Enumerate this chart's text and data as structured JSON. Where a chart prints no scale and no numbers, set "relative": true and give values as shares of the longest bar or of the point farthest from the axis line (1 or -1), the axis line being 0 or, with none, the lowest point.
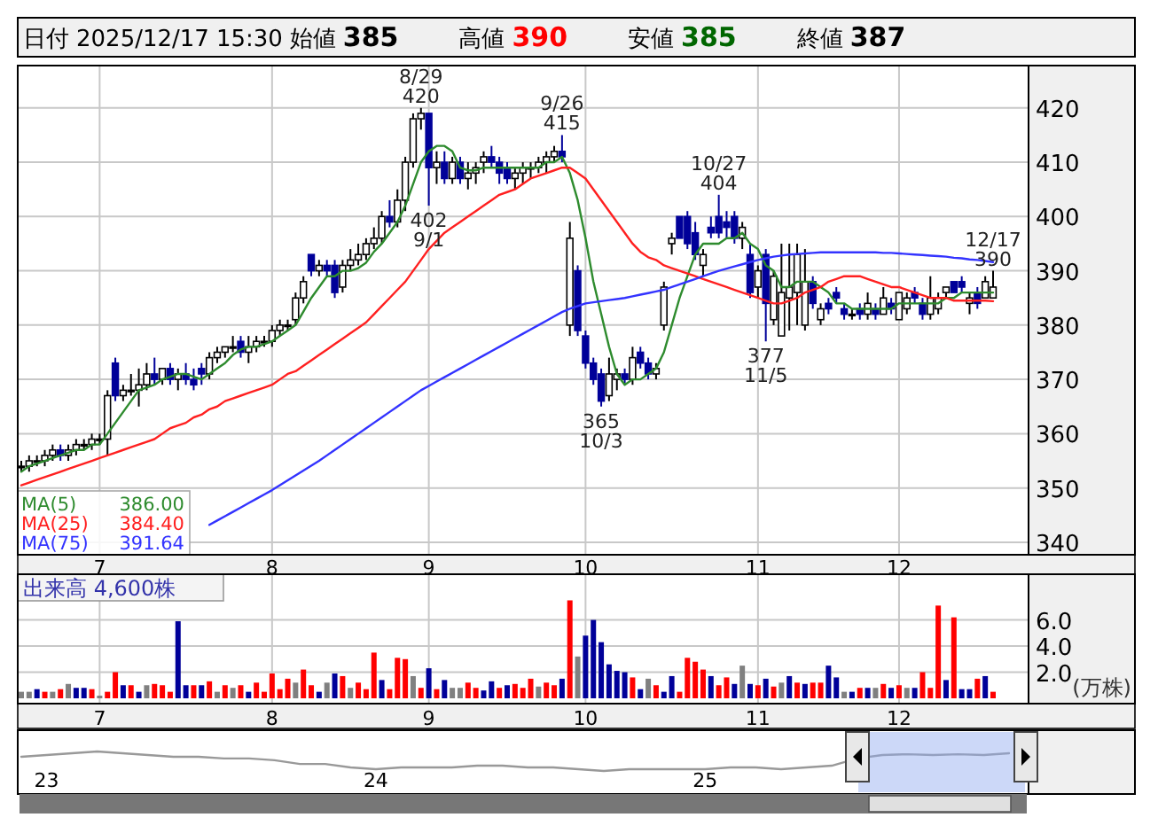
{
  "chart_data": [
    {
      "type": "candlestick",
      "title": "日付 2025/12/17 15:30 始値 385 高値 390 安値 385 終値 387",
      "categories": [
        null,
        null,
        null,
        null,
        null,
        null,
        null,
        null,
        null,
        null,
        "7",
        null,
        null,
        null,
        null,
        null,
        null,
        null,
        null,
        null,
        null,
        null,
        null,
        null,
        null,
        null,
        null,
        null,
        null,
        null,
        null,
        null,
        "8",
        null,
        null,
        null,
        null,
        null,
        null,
        null,
        null,
        null,
        null,
        null,
        null,
        null,
        null,
        null,
        null,
        null,
        null,
        null,
        "9",
        null,
        null,
        null,
        null,
        null,
        null,
        null,
        null,
        null,
        null,
        null,
        null,
        null,
        null,
        null,
        null,
        null,
        null,
        null,
        "10",
        null,
        null,
        null,
        null,
        null,
        null,
        null,
        null,
        null,
        null,
        null,
        null,
        null,
        null,
        null,
        null,
        null,
        null,
        null,
        null,
        null,
        "11",
        null,
        null,
        null,
        null,
        null,
        null,
        null,
        null,
        null,
        null,
        null,
        null,
        null,
        null,
        null,
        null,
        null,
        "12",
        null,
        null,
        null,
        null,
        null,
        null,
        null,
        null,
        null,
        null,
        null,
        null
      ],
      "ohlc": [
        [
          354,
          355,
          353,
          354
        ],
        [
          354,
          356,
          353,
          355
        ],
        [
          355,
          356,
          354,
          355
        ],
        [
          355,
          357,
          354,
          356
        ],
        [
          356,
          358,
          355,
          357
        ],
        [
          357,
          358,
          355,
          356
        ],
        [
          356,
          358,
          355,
          357
        ],
        [
          357,
          359,
          356,
          358
        ],
        [
          358,
          359,
          357,
          358
        ],
        [
          358,
          360,
          357,
          359
        ],
        [
          359,
          360,
          358,
          359
        ],
        [
          359,
          368,
          356,
          367
        ],
        [
          373,
          374,
          366,
          367
        ],
        [
          367,
          369,
          366,
          368
        ],
        [
          368,
          371,
          367,
          368
        ],
        [
          368,
          372,
          365,
          369
        ],
        [
          369,
          373,
          368,
          371
        ],
        [
          371,
          374,
          369,
          370
        ],
        [
          370,
          372,
          369,
          372
        ],
        [
          372,
          373,
          369,
          370
        ],
        [
          370,
          372,
          368,
          371
        ],
        [
          371,
          373,
          369,
          370
        ],
        [
          370,
          372,
          368,
          369
        ],
        [
          372,
          373,
          369,
          371
        ],
        [
          371,
          375,
          370,
          374
        ],
        [
          374,
          376,
          373,
          375
        ],
        [
          375,
          376,
          374,
          376
        ],
        [
          376,
          378,
          375,
          376
        ],
        [
          377,
          378,
          374,
          375
        ],
        [
          375,
          378,
          373,
          376
        ],
        [
          376,
          378,
          375,
          377
        ],
        [
          377,
          378,
          376,
          377
        ],
        [
          377,
          380,
          376,
          379
        ],
        [
          379,
          381,
          378,
          380
        ],
        [
          380,
          381,
          379,
          380
        ],
        [
          381,
          386,
          380,
          385
        ],
        [
          385,
          389,
          384,
          388
        ],
        [
          393,
          393,
          389,
          390
        ],
        [
          390,
          392,
          389,
          391
        ],
        [
          391,
          392,
          389,
          390
        ],
        [
          391,
          392,
          385,
          386
        ],
        [
          387,
          392,
          386,
          391
        ],
        [
          391,
          394,
          390,
          392
        ],
        [
          392,
          395,
          391,
          393
        ],
        [
          393,
          396,
          392,
          395
        ],
        [
          395,
          398,
          394,
          396
        ],
        [
          396,
          401,
          395,
          400
        ],
        [
          400,
          403,
          398,
          399
        ],
        [
          399,
          405,
          398,
          403
        ],
        [
          403,
          411,
          401,
          410
        ],
        [
          410,
          419,
          409,
          418
        ],
        [
          418,
          420,
          416,
          419
        ],
        [
          419,
          419,
          402,
          409
        ],
        [
          409,
          412,
          406,
          410
        ],
        [
          410,
          412,
          406,
          407
        ],
        [
          407,
          411,
          406,
          410
        ],
        [
          410,
          411,
          406,
          407
        ],
        [
          407,
          410,
          405,
          408
        ],
        [
          408,
          410,
          406,
          409
        ],
        [
          410,
          412,
          408,
          411
        ],
        [
          411,
          413,
          409,
          410
        ],
        [
          410,
          411,
          406,
          408
        ],
        [
          409,
          410,
          406,
          407
        ],
        [
          407,
          409,
          405,
          408
        ],
        [
          408,
          410,
          406,
          409
        ],
        [
          409,
          410,
          407,
          409
        ],
        [
          409,
          411,
          408,
          410
        ],
        [
          410,
          412,
          408,
          411
        ],
        [
          411,
          413,
          410,
          412
        ],
        [
          412,
          415,
          410,
          411
        ],
        [
          380,
          399,
          378,
          396
        ],
        [
          390,
          391,
          378,
          379
        ],
        [
          378,
          379,
          372,
          373
        ],
        [
          373,
          374,
          369,
          370
        ],
        [
          371,
          372,
          365,
          366
        ],
        [
          367,
          374,
          366,
          371
        ],
        [
          370,
          372,
          368,
          371
        ],
        [
          371,
          372,
          369,
          370
        ],
        [
          370,
          376,
          369,
          374
        ],
        [
          375,
          376,
          372,
          373
        ],
        [
          373,
          374,
          370,
          371
        ],
        [
          371,
          373,
          370,
          372
        ],
        [
          380,
          388,
          379,
          387
        ],
        [
          395,
          397,
          393,
          396
        ],
        [
          400,
          400,
          396,
          396
        ],
        [
          400,
          401,
          394,
          395
        ],
        [
          397,
          399,
          392,
          393
        ],
        [
          391,
          394,
          389,
          393
        ],
        [
          398,
          400,
          396,
          397
        ],
        [
          400,
          404,
          396,
          397
        ],
        [
          399,
          401,
          396,
          398
        ],
        [
          400,
          401,
          395,
          396
        ],
        [
          396,
          399,
          394,
          398
        ],
        [
          393,
          395,
          385,
          386
        ],
        [
          387,
          391,
          385,
          390
        ],
        [
          393,
          394,
          377,
          384
        ],
        [
          381,
          390,
          380,
          389
        ],
        [
          378,
          395,
          378,
          386
        ],
        [
          385,
          395,
          379,
          387
        ],
        [
          386,
          395,
          380,
          393
        ],
        [
          380,
          394,
          379,
          388
        ],
        [
          388,
          389,
          383,
          384
        ],
        [
          381,
          384,
          380,
          383
        ],
        [
          384,
          385,
          382,
          383
        ],
        [
          386,
          387,
          384,
          385
        ],
        [
          383,
          384,
          381,
          382
        ],
        [
          382,
          383,
          381,
          382
        ],
        [
          383,
          384,
          381,
          382
        ],
        [
          382,
          386,
          381,
          384
        ],
        [
          383,
          384,
          381,
          382
        ],
        [
          382,
          387,
          382,
          385
        ],
        [
          384,
          385,
          382,
          383
        ],
        [
          381,
          386,
          381,
          386
        ],
        [
          383,
          386,
          382,
          385
        ],
        [
          386,
          387,
          384,
          385
        ],
        [
          384,
          385,
          381,
          382
        ],
        [
          382,
          389,
          381,
          385
        ],
        [
          383,
          386,
          382,
          385
        ],
        [
          386,
          387,
          385,
          387
        ],
        [
          388,
          388,
          386,
          386
        ],
        [
          388,
          389,
          386,
          387
        ],
        [
          384,
          386,
          382,
          385
        ],
        [
          386,
          387,
          383,
          384
        ],
        [
          385,
          389,
          385,
          388
        ],
        [
          385,
          390,
          385,
          387
        ]
      ],
      "series": [
        {
          "type": "line",
          "name": "MA(5) 386.00",
          "color": "#2e8b2e",
          "values": [
            353,
            354,
            354.5,
            355,
            355.5,
            356,
            356.5,
            357,
            357,
            358,
            358,
            360,
            362,
            364,
            366,
            368,
            368.5,
            369,
            370,
            370.5,
            371,
            371,
            370.5,
            370,
            371,
            372,
            373,
            374.5,
            375.5,
            376,
            376,
            376.5,
            377,
            378,
            379,
            380,
            382.5,
            385,
            387,
            389,
            389,
            390,
            390,
            390.5,
            391.5,
            393.5,
            395,
            397,
            399,
            402,
            406,
            410,
            412,
            413,
            413,
            412,
            409,
            408.5,
            408.5,
            409,
            409,
            409,
            409,
            409,
            409,
            409,
            409,
            410,
            410,
            411,
            408,
            403,
            396,
            388,
            382,
            376,
            371,
            369,
            370,
            370,
            371,
            372,
            375,
            380,
            385,
            389,
            393,
            395,
            395,
            395,
            396,
            396,
            397,
            395,
            394,
            391,
            390,
            387,
            387,
            388,
            388,
            388,
            387,
            386,
            384,
            384,
            383,
            383,
            383,
            383,
            383,
            383,
            384,
            384,
            384,
            384,
            384,
            384,
            385,
            385,
            386,
            386,
            386,
            386,
            386
          ]
        },
        {
          "type": "line",
          "name": "MA(25) 384.40",
          "color": "#ff2020",
          "values": [
            350.5,
            351,
            351.5,
            352,
            352.5,
            353,
            353.5,
            354,
            354.5,
            355,
            355.5,
            356,
            356.5,
            357,
            357.5,
            358,
            358.5,
            359,
            360,
            361,
            361.5,
            362,
            363,
            363.5,
            364.5,
            365,
            366,
            366.5,
            367,
            367.5,
            368,
            368.5,
            369,
            370,
            371,
            371.5,
            372.5,
            373.5,
            374.5,
            375.5,
            376.5,
            377.5,
            378.5,
            379.5,
            380.5,
            382,
            383.5,
            385,
            386.5,
            388,
            390,
            392,
            394,
            395.5,
            397,
            398,
            399,
            400,
            401,
            402,
            403,
            404,
            404.5,
            405,
            406,
            407,
            407.5,
            408,
            408.5,
            409,
            409,
            408,
            407,
            405,
            403,
            401,
            399,
            397,
            395,
            393.5,
            392.5,
            392,
            391,
            390.5,
            390,
            389.5,
            389,
            388.5,
            388,
            387.5,
            387,
            386.5,
            386,
            385.5,
            385,
            384.5,
            384,
            384,
            384.5,
            385,
            386,
            386.5,
            387,
            388,
            388.5,
            389,
            389,
            389,
            388.5,
            388,
            387.5,
            387,
            387,
            386.5,
            386,
            385.5,
            385,
            385,
            385,
            384.5,
            384.5,
            384.5,
            384.5,
            384.5,
            384.4
          ]
        },
        {
          "type": "line",
          "name": "MA(75) 391.64",
          "color": "#3333ff",
          "values": [
            null,
            null,
            null,
            null,
            null,
            null,
            null,
            null,
            null,
            null,
            null,
            null,
            null,
            null,
            null,
            null,
            null,
            null,
            null,
            null,
            null,
            null,
            null,
            null,
            343.2,
            344,
            344.8,
            345.6,
            346.4,
            347.2,
            348,
            348.8,
            349.6,
            350.5,
            351.4,
            352.3,
            353.2,
            354.1,
            355,
            356,
            357,
            358,
            359,
            360,
            361,
            362,
            363,
            364,
            365,
            366,
            367,
            368,
            368.8,
            369.6,
            370.4,
            371.2,
            372,
            372.8,
            373.6,
            374.4,
            375.2,
            376,
            376.8,
            377.6,
            378.4,
            379.2,
            380,
            380.8,
            381.6,
            382.4,
            383,
            383.5,
            384,
            384.2,
            384.4,
            384.6,
            384.8,
            385,
            385.3,
            385.6,
            385.9,
            386.2,
            386.5,
            387,
            387.5,
            388,
            388.5,
            389,
            389.5,
            390,
            390.4,
            390.8,
            391.2,
            391.6,
            392,
            392.3,
            392.6,
            392.8,
            393,
            393.1,
            393.2,
            393.3,
            393.4,
            393.4,
            393.4,
            393.4,
            393.4,
            393.4,
            393.4,
            393.4,
            393.3,
            393.3,
            393.2,
            393.1,
            393,
            392.9,
            392.8,
            392.7,
            392.6,
            392.4,
            392.3,
            392.1,
            392,
            391.8,
            391.6
          ]
        }
      ],
      "ylim": [
        337.7,
        427.8
      ],
      "yticks": [
        340,
        350,
        360,
        370,
        380,
        390,
        400,
        410,
        420
      ],
      "grid": true,
      "annotations": [
        {
          "text": "8/29\n420",
          "y": 420
        },
        {
          "text": "402\n9/1",
          "y": 402
        },
        {
          "text": "9/26\n415",
          "y": 415
        },
        {
          "text": "365\n10/3",
          "y": 365
        },
        {
          "text": "10/27\n404",
          "y": 404
        },
        {
          "text": "377\n11/5",
          "y": 377
        },
        {
          "text": "12/17\n390",
          "y": 390
        }
      ]
    },
    {
      "type": "bar",
      "ylabel": "(万株)",
      "annotations": [
        "出来高 4,600株"
      ],
      "categories": [
        null,
        null,
        null,
        null,
        null,
        null,
        null,
        null,
        null,
        null,
        "7",
        null,
        null,
        null,
        null,
        null,
        null,
        null,
        null,
        null,
        null,
        null,
        null,
        null,
        null,
        null,
        null,
        null,
        null,
        null,
        null,
        null,
        "8",
        null,
        null,
        null,
        null,
        null,
        null,
        null,
        null,
        null,
        null,
        null,
        null,
        null,
        null,
        null,
        null,
        null,
        null,
        null,
        "9",
        null,
        null,
        null,
        null,
        null,
        null,
        null,
        null,
        null,
        null,
        null,
        null,
        null,
        null,
        null,
        null,
        null,
        null,
        null,
        "10",
        null,
        null,
        null,
        null,
        null,
        null,
        null,
        null,
        null,
        null,
        null,
        null,
        null,
        null,
        null,
        null,
        null,
        null,
        null,
        null,
        null,
        "11",
        null,
        null,
        null,
        null,
        null,
        null,
        null,
        null,
        null,
        null,
        null,
        null,
        null,
        null,
        null,
        null,
        null,
        "12",
        null,
        null,
        null,
        null,
        null,
        null,
        null,
        null,
        null,
        null,
        null,
        null
      ],
      "values": [
        0.5,
        0.5,
        0.7,
        0.5,
        0.5,
        0.7,
        1.1,
        0.8,
        0.8,
        0.7,
        0.2,
        0.5,
        2.0,
        1.0,
        1.0,
        0.5,
        1.0,
        1.1,
        1.0,
        0.5,
        5.9,
        1.0,
        1.0,
        1.0,
        1.3,
        0.5,
        1.0,
        0.8,
        1.0,
        0.5,
        1.2,
        0.5,
        1.9,
        0.7,
        1.5,
        1.2,
        2.2,
        1.0,
        0.5,
        1.2,
        1.9,
        1.7,
        0.8,
        1.2,
        0.7,
        3.5,
        1.4,
        0.7,
        3.1,
        3.0,
        1.7,
        0.8,
        2.3,
        0.7,
        1.4,
        0.8,
        0.8,
        1.2,
        0.8,
        0.6,
        1.3,
        0.8,
        1.0,
        1.1,
        0.8,
        1.5,
        0.9,
        1.2,
        1.0,
        1.5,
        7.5,
        3.2,
        4.8,
        6.0,
        4.3,
        2.6,
        2.1,
        2.0,
        1.6,
        0.7,
        1.5,
        1.0,
        0.5,
        1.7,
        0.5,
        3.1,
        2.8,
        2.2,
        1.7,
        1.0,
        1.6,
        1.1,
        2.5,
        1.1,
        1.0,
        1.5,
        0.9,
        1.2,
        1.7,
        1.2,
        1.1,
        1.2,
        1.2,
        2.5,
        1.6,
        0.5,
        0.5,
        0.8,
        0.8,
        0.8,
        1.1,
        0.8,
        1.0,
        0.8,
        0.8,
        2.0,
        0.8,
        7.1,
        1.4,
        6.2,
        0.7,
        0.7,
        1.5,
        1.7,
        0.5
      ],
      "colors": [
        "#808080",
        "#808080",
        "#000099",
        "#ff0000",
        "#808080",
        "#ff0000",
        "#808080",
        "#000099",
        "#000099",
        "#ff0000",
        "#808080",
        "#ff0000",
        "#ff0000",
        "#000099",
        "#ff0000",
        "#000099",
        "#808080",
        "#ff0000",
        "#ff0000",
        "#ff0000",
        "#000099",
        "#000099",
        "#ff0000",
        "#000099",
        "#ff0000",
        "#808080",
        "#ff0000",
        "#808080",
        "#ff0000",
        "#000099",
        "#ff0000",
        "#ff0000",
        "#ff0000",
        "#ff0000",
        "#ff0000",
        "#808080",
        "#ff0000",
        "#ff0000",
        "#000099",
        "#808080",
        "#000099",
        "#ff0000",
        "#808080",
        "#ff0000",
        "#ff0000",
        "#ff0000",
        "#000099",
        "#ff0000",
        "#ff0000",
        "#ff0000",
        "#808080",
        "#ff0000",
        "#000099",
        "#ff0000",
        "#000099",
        "#808080",
        "#808080",
        "#ff0000",
        "#ff0000",
        "#000099",
        "#000099",
        "#ff0000",
        "#000099",
        "#ff0000",
        "#ff0000",
        "#ff0000",
        "#808080",
        "#ff0000",
        "#ff0000",
        "#000099",
        "#ff0000",
        "#808080",
        "#000099",
        "#000099",
        "#000099",
        "#000099",
        "#000099",
        "#000099",
        "#ff0000",
        "#000099",
        "#808080",
        "#ff0000",
        "#000099",
        "#000099",
        "#ff0000",
        "#ff0000",
        "#ff0000",
        "#ff0000",
        "#000099",
        "#ff0000",
        "#ff0000",
        "#000099",
        "#808080",
        "#000099",
        "#ff0000",
        "#000099",
        "#ff0000",
        "#808080",
        "#000099",
        "#ff0000",
        "#000099",
        "#ff0000",
        "#ff0000",
        "#000099",
        "#000099",
        "#808080",
        "#000099",
        "#ff0000",
        "#000099",
        "#808080",
        "#ff0000",
        "#000099",
        "#ff0000",
        "#808080",
        "#000099",
        "#ff0000",
        "#ff0000",
        "#ff0000",
        "#000099",
        "#ff0000",
        "#000099",
        "#000099",
        "#ff0000",
        "#000099",
        "#ff0000"
      ],
      "ylim": [
        0,
        9.5
      ],
      "yticks": [
        {
          "value": 2,
          "label": "2.0"
        },
        {
          "value": 4,
          "label": "4.0"
        },
        {
          "value": 6,
          "label": "6.0"
        }
      ],
      "grid": true
    },
    {
      "type": "line",
      "relative": true,
      "color": "#999999",
      "categories": [
        null,
        "23",
        null,
        null,
        null,
        null,
        null,
        null,
        null,
        null,
        null,
        null,
        null,
        null,
        "24",
        null,
        null,
        null,
        null,
        null,
        null,
        null,
        null,
        null,
        null,
        null,
        null,
        "25",
        null,
        null,
        null,
        null,
        null,
        null,
        null,
        null,
        null,
        null,
        null,
        null
      ],
      "values": [
        0.73,
        0.82,
        0.91,
        1,
        0.91,
        0.82,
        0.73,
        0.73,
        0.64,
        0.64,
        0.55,
        0.36,
        0.36,
        0.18,
        0.09,
        0.18,
        0.18,
        0.18,
        0.27,
        0.27,
        0.18,
        0.18,
        0.09,
        0,
        0.09,
        0.09,
        0.09,
        0.09,
        0.18,
        0.18,
        0.09,
        0.18,
        0.27,
        0.64,
        0.82,
        0.86,
        0.82,
        0.86,
        0.82,
        0.91
      ]
    }
  ]
}
